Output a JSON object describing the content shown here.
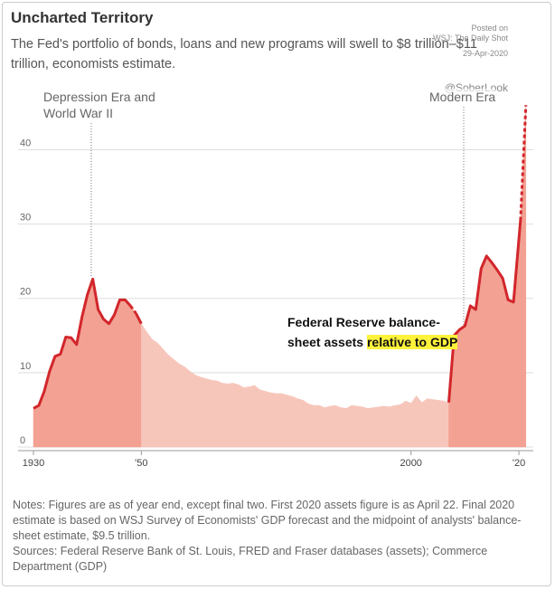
{
  "chart_data": {
    "type": "area",
    "title": "Uncharted Territory",
    "subtitle": "The Fed's portfolio of bonds, loans and new programs will swell to $8 trillion–$11 trillion, economists estimate.",
    "watermark": [
      "Posted on",
      "WSJ: The Daily Shot",
      "29-Apr-2020",
      "@SoberLook"
    ],
    "annotations": [
      "Depression Era and World War II",
      "Modern Era"
    ],
    "series_label": {
      "text": "Federal Reserve balance-sheet assets",
      "highlight": "relative to GDP"
    },
    "xlim": [
      1930,
      2021.5
    ],
    "ylim": [
      0,
      47
    ],
    "xticks": [
      1930,
      {
        "value": 1950,
        "label": "'50"
      },
      2000,
      {
        "value": 2020,
        "label": "'20"
      }
    ],
    "yticks": [
      0,
      10,
      20,
      30,
      40
    ],
    "grid": true,
    "line_color": "#d2262b",
    "estimate_dashed": true,
    "series": [
      {
        "color": "#f2a193",
        "line": true,
        "x": [
          1930,
          1931,
          1932,
          1933,
          1934,
          1935,
          1936,
          1937,
          1938,
          1939,
          1940,
          1941,
          1942,
          1943,
          1944,
          1945,
          1946,
          1947,
          1948,
          1949
        ],
        "values": [
          5.2,
          5.6,
          7.5,
          10.2,
          12.2,
          12.5,
          14.8,
          14.7,
          13.8,
          17.5,
          20.5,
          22.6,
          18.5,
          17.2,
          16.6,
          17.8,
          19.8,
          19.8,
          19.0,
          18.0
        ]
      },
      {
        "color": "#f7c6bb",
        "line": false,
        "x": [
          1950,
          1951,
          1952,
          1953,
          1954,
          1955,
          1956,
          1957,
          1958,
          1959,
          1960,
          1961,
          1962,
          1963,
          1964,
          1965,
          1966,
          1967,
          1968,
          1969,
          1970,
          1971,
          1972,
          1973,
          1974,
          1975,
          1976,
          1977,
          1978,
          1979,
          1980,
          1981,
          1982,
          1983,
          1984,
          1985,
          1986,
          1987,
          1988,
          1989,
          1990,
          1991,
          1992,
          1993,
          1994,
          1995,
          1996,
          1997,
          1998,
          1999,
          2000,
          2001,
          2002,
          2003,
          2004,
          2005,
          2006
        ],
        "values": [
          16.6,
          15.5,
          14.5,
          14.0,
          13.2,
          12.4,
          11.8,
          11.2,
          10.8,
          10.2,
          9.7,
          9.4,
          9.2,
          9.0,
          8.9,
          8.6,
          8.5,
          8.6,
          8.4,
          8.0,
          8.1,
          8.3,
          7.7,
          7.5,
          7.3,
          7.2,
          7.2,
          7.0,
          6.8,
          6.5,
          6.3,
          5.8,
          5.6,
          5.6,
          5.3,
          5.5,
          5.6,
          5.3,
          5.2,
          5.6,
          5.5,
          5.4,
          5.2,
          5.3,
          5.4,
          5.5,
          5.4,
          5.6,
          5.7,
          6.2,
          5.9,
          6.9,
          6.0,
          6.5,
          6.4,
          6.3,
          6.2
        ]
      },
      {
        "color": "#f2a193",
        "line": true,
        "x": [
          2007,
          2008,
          2009,
          2010,
          2011,
          2012,
          2013,
          2014,
          2015,
          2016,
          2017,
          2018,
          2019,
          2020.3,
          2021.3
        ],
        "values": [
          6.0,
          15.0,
          15.8,
          16.3,
          19.0,
          18.5,
          24.0,
          25.7,
          24.8,
          23.8,
          22.7,
          19.8,
          19.5,
          30.5,
          46.0
        ]
      }
    ],
    "notes": "Notes: Figures are as of year end, except final two. First 2020 assets figure is as April 22. Final 2020 estimate is based on WSJ Survey of Economists' GDP forecast and the midpoint of analysts' balance-sheet estimate, $9.5 trillion.",
    "sources": "Sources: Federal Reserve Bank of St. Louis, FRED and Fraser databases (assets); Commerce Department (GDP)"
  }
}
